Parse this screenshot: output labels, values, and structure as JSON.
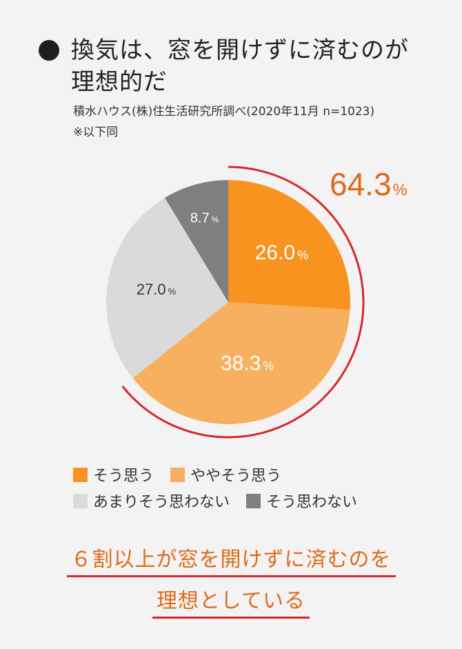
{
  "header": {
    "title_line1": "換気は、窓を開けずに済むのが",
    "title_line2": "理想的だ",
    "source": "積水ハウス(株)住生活研究所調べ(2020年11月 n=1023)",
    "note": "※以下同"
  },
  "chart_data": {
    "type": "pie",
    "title": "換気は、窓を開けずに済むのが理想的だ",
    "categories": [
      "そう思う",
      "ややそう思う",
      "あまりそう思わない",
      "そう思わない"
    ],
    "values": [
      26.0,
      38.3,
      27.0,
      8.7
    ],
    "colors": [
      "#f7931e",
      "#f7b060",
      "#dadada",
      "#7f7f7f"
    ],
    "labels": [
      "26.0",
      "38.3",
      "27.0",
      "8.7"
    ],
    "unit": "%",
    "annotation": {
      "value": "64.3",
      "unit": "%",
      "description": "そう思う + ややそう思う",
      "color": "#e06a1a",
      "arc_color": "#d7262b"
    },
    "legend_position": "bottom"
  },
  "legend": [
    {
      "label": "そう思う",
      "color": "#f7931e"
    },
    {
      "label": "ややそう思う",
      "color": "#f7b060"
    },
    {
      "label": "あまりそう思わない",
      "color": "#dadada"
    },
    {
      "label": "そう思わない",
      "color": "#7f7f7f"
    }
  ],
  "conclusion": {
    "line1": "６割以上が窓を開けずに済むのを",
    "line2": "理想としている"
  }
}
